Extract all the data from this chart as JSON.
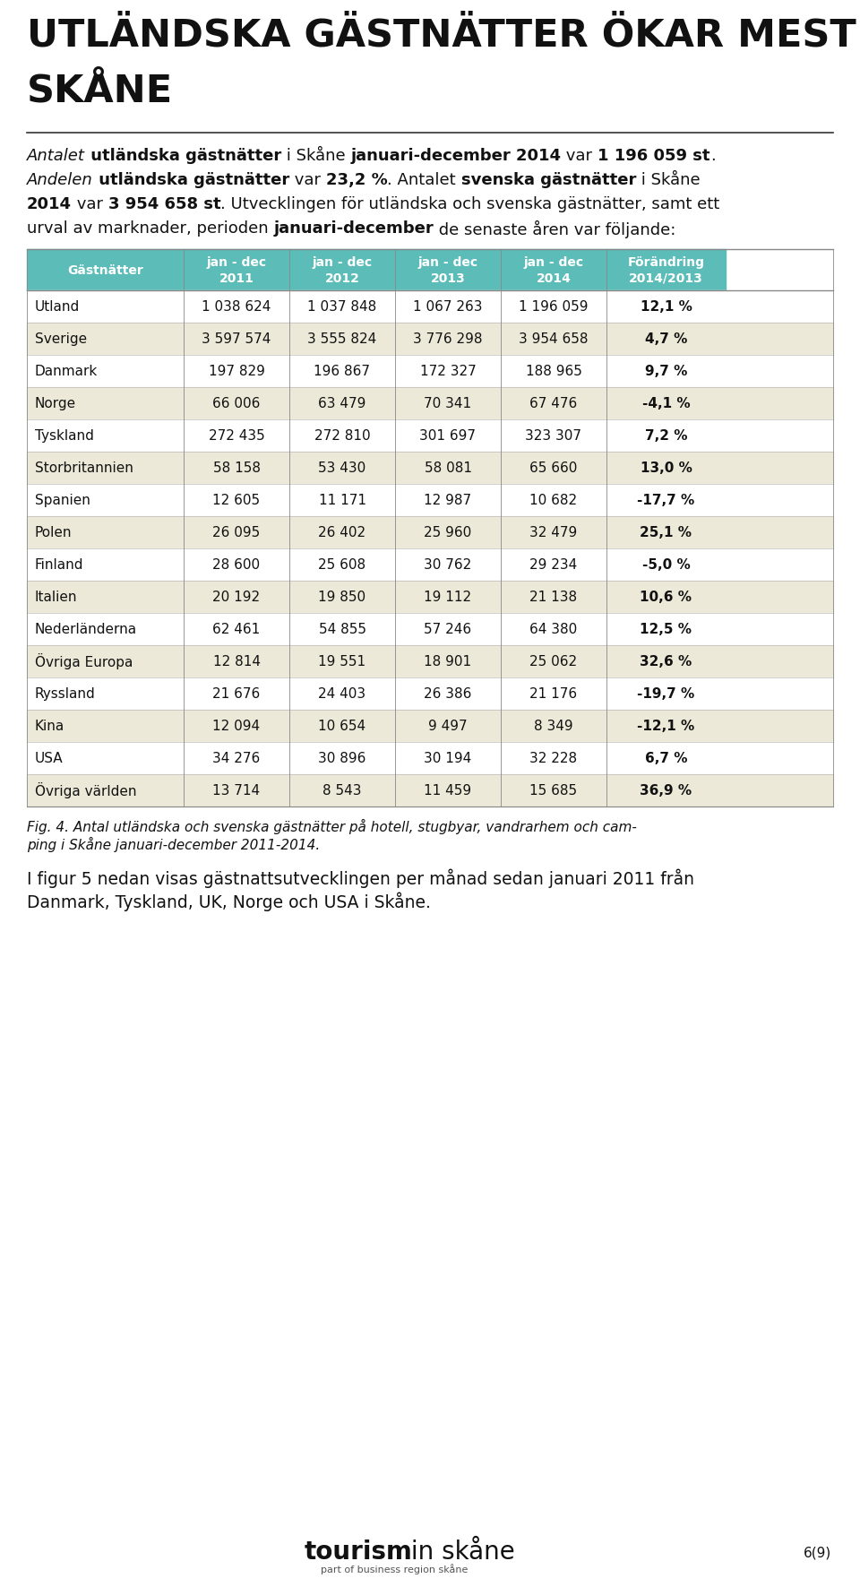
{
  "title_line1": "UTLÄNDSKA GÄSTNÄTTER ÖKAR MEST I",
  "title_line2": "SKÅNE",
  "header_bg": "#5bbcb8",
  "header_text_color": "#ffffff",
  "col_headers": [
    "Gästnätter",
    "jan - dec\n2011",
    "jan - dec\n2012",
    "jan - dec\n2013",
    "jan - dec\n2014",
    "Förändring\n2014/2013"
  ],
  "rows": [
    {
      "name": "Utland",
      "v2011": "1 038 624",
      "v2012": "1 037 848",
      "v2013": "1 067 263",
      "v2014": "1 196 059",
      "change": "12,1 %"
    },
    {
      "name": "Sverige",
      "v2011": "3 597 574",
      "v2012": "3 555 824",
      "v2013": "3 776 298",
      "v2014": "3 954 658",
      "change": "4,7 %"
    },
    {
      "name": "Danmark",
      "v2011": "197 829",
      "v2012": "196 867",
      "v2013": "172 327",
      "v2014": "188 965",
      "change": "9,7 %"
    },
    {
      "name": "Norge",
      "v2011": "66 006",
      "v2012": "63 479",
      "v2013": "70 341",
      "v2014": "67 476",
      "change": "-4,1 %"
    },
    {
      "name": "Tyskland",
      "v2011": "272 435",
      "v2012": "272 810",
      "v2013": "301 697",
      "v2014": "323 307",
      "change": "7,2 %"
    },
    {
      "name": "Storbritannien",
      "v2011": "58 158",
      "v2012": "53 430",
      "v2013": "58 081",
      "v2014": "65 660",
      "change": "13,0 %"
    },
    {
      "name": "Spanien",
      "v2011": "12 605",
      "v2012": "11 171",
      "v2013": "12 987",
      "v2014": "10 682",
      "change": "-17,7 %"
    },
    {
      "name": "Polen",
      "v2011": "26 095",
      "v2012": "26 402",
      "v2013": "25 960",
      "v2014": "32 479",
      "change": "25,1 %"
    },
    {
      "name": "Finland",
      "v2011": "28 600",
      "v2012": "25 608",
      "v2013": "30 762",
      "v2014": "29 234",
      "change": "-5,0 %"
    },
    {
      "name": "Italien",
      "v2011": "20 192",
      "v2012": "19 850",
      "v2013": "19 112",
      "v2014": "21 138",
      "change": "10,6 %"
    },
    {
      "name": "Nederländerna",
      "v2011": "62 461",
      "v2012": "54 855",
      "v2013": "57 246",
      "v2014": "64 380",
      "change": "12,5 %"
    },
    {
      "name": "Övriga Europa",
      "v2011": "12 814",
      "v2012": "19 551",
      "v2013": "18 901",
      "v2014": "25 062",
      "change": "32,6 %"
    },
    {
      "name": "Ryssland",
      "v2011": "21 676",
      "v2012": "24 403",
      "v2013": "26 386",
      "v2014": "21 176",
      "change": "-19,7 %"
    },
    {
      "name": "Kina",
      "v2011": "12 094",
      "v2012": "10 654",
      "v2013": "9 497",
      "v2014": "8 349",
      "change": "-12,1 %"
    },
    {
      "name": "USA",
      "v2011": "34 276",
      "v2012": "30 896",
      "v2013": "30 194",
      "v2014": "32 228",
      "change": "6,7 %"
    },
    {
      "name": "Övriga världen",
      "v2011": "13 714",
      "v2012": "8 543",
      "v2013": "11 459",
      "v2014": "15 685",
      "change": "36,9 %"
    }
  ],
  "caption_line1": "Fig. 4. Antal utländska och svenska gästnätter på hotell, stugbyar, vandrarhem och cam-",
  "caption_line2": "ping i Skåne januari-december 2011-2014.",
  "footer_text1": "I figur 5 nedan visas gästnattsutvecklingen per månad sedan januari 2011 från",
  "footer_text2": "Danmark, Tyskland, UK, Norge och USA i Skåne.",
  "page_number": "6(9)",
  "bg_color": "#ffffff",
  "row_odd_color": "#ede9d8",
  "row_even_color": "#ffffff",
  "teal_row_color": "#5bbcb8"
}
